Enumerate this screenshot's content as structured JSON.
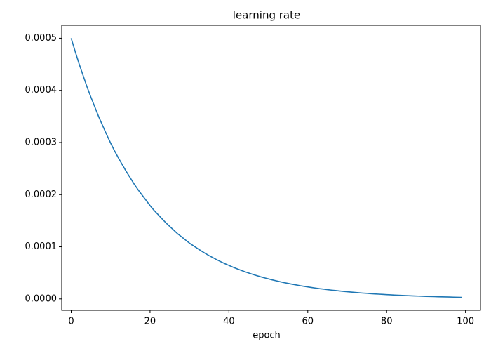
{
  "chart_data": {
    "type": "line",
    "title": "learning rate",
    "xlabel": "epoch",
    "x": [
      0,
      1,
      2,
      3,
      4,
      5,
      6,
      7,
      8,
      9,
      10,
      11,
      12,
      13,
      14,
      15,
      16,
      17,
      18,
      19,
      20,
      21,
      22,
      23,
      24,
      25,
      26,
      27,
      28,
      29,
      30,
      31,
      32,
      33,
      34,
      35,
      36,
      37,
      38,
      39,
      40,
      41,
      42,
      43,
      44,
      45,
      46,
      47,
      48,
      49,
      50,
      51,
      52,
      53,
      54,
      55,
      56,
      57,
      58,
      59,
      60,
      61,
      62,
      63,
      64,
      65,
      66,
      67,
      68,
      69,
      70,
      71,
      72,
      73,
      74,
      75,
      76,
      77,
      78,
      79,
      80,
      81,
      82,
      83,
      84,
      85,
      86,
      87,
      88,
      89,
      90,
      91,
      92,
      93,
      94,
      95,
      96,
      97,
      98,
      99
    ],
    "values": [
      0.0005,
      0.000475,
      0.000451,
      0.000429,
      0.000407,
      0.000387,
      0.000368,
      0.000349,
      0.000332,
      0.000315,
      0.000299,
      0.000284,
      0.00027,
      0.000257,
      0.000244,
      0.000232,
      0.00022,
      0.000209,
      0.000199,
      0.000189,
      0.000179,
      0.00017,
      0.000162,
      0.000154,
      0.000146,
      0.000139,
      0.000132,
      0.000125,
      0.000119,
      0.000113,
      0.000107,
      0.000102,
      9.69e-05,
      9.2e-05,
      8.74e-05,
      8.3e-05,
      7.89e-05,
      7.49e-05,
      7.12e-05,
      6.76e-05,
      6.43e-05,
      6.1e-05,
      5.8e-05,
      5.51e-05,
      5.23e-05,
      4.97e-05,
      4.72e-05,
      4.49e-05,
      4.26e-05,
      4.05e-05,
      3.85e-05,
      3.65e-05,
      3.47e-05,
      3.3e-05,
      3.13e-05,
      2.98e-05,
      2.83e-05,
      2.69e-05,
      2.55e-05,
      2.42e-05,
      2.3e-05,
      2.19e-05,
      2.08e-05,
      1.97e-05,
      1.88e-05,
      1.78e-05,
      1.69e-05,
      1.61e-05,
      1.53e-05,
      1.45e-05,
      1.38e-05,
      1.31e-05,
      1.24e-05,
      1.18e-05,
      1.12e-05,
      1.07e-05,
      1.01e-05,
      9.63e-06,
      9.15e-06,
      8.69e-06,
      8.26e-06,
      7.85e-06,
      7.45e-06,
      7.08e-06,
      6.73e-06,
      6.39e-06,
      6.07e-06,
      5.77e-06,
      5.48e-06,
      5.2e-06,
      4.94e-06,
      4.7e-06,
      4.46e-06,
      4.24e-06,
      4.03e-06,
      3.83e-06,
      3.63e-06,
      3.45e-06,
      3.28e-06,
      3.12e-06
    ],
    "color": "#1f77b4",
    "xlim": [
      -2.4,
      103.8
    ],
    "xticks": [
      0,
      20,
      40,
      60,
      80,
      100
    ],
    "ylim": [
      -2.18e-05,
      0.0005248
    ],
    "yticks": [
      {
        "value": 0,
        "label": "0.0000"
      },
      0.0001,
      0.0002,
      0.0003,
      0.0004,
      0.0005
    ]
  }
}
